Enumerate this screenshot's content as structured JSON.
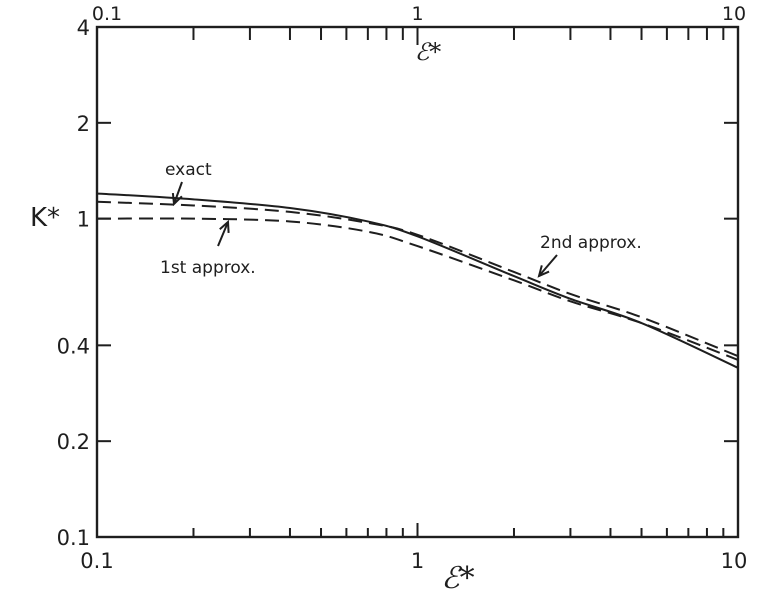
{
  "chart_data": {
    "type": "line",
    "x_scale": "log",
    "y_scale": "log",
    "xlim": [
      0.1,
      10
    ],
    "ylim": [
      0.1,
      4
    ],
    "xlabel": "ℰ*",
    "ylabel": "K*",
    "top_xlabel": "ℰ*",
    "x_ticks": [
      {
        "value": 0.1,
        "label": "0.1"
      },
      {
        "value": 1,
        "label": "1"
      },
      {
        "value": 10,
        "label": "10"
      }
    ],
    "top_x_ticks": [
      {
        "value": 0.1,
        "label": "0.1"
      },
      {
        "value": 1,
        "label": "1"
      },
      {
        "value": 10,
        "label": "10"
      }
    ],
    "y_ticks": [
      {
        "value": 0.1,
        "label": "0.1"
      },
      {
        "value": 0.2,
        "label": "0.2"
      },
      {
        "value": 0.4,
        "label": "0.4"
      },
      {
        "value": 1,
        "label": "1"
      },
      {
        "value": 2,
        "label": "2"
      },
      {
        "value": 4,
        "label": "4"
      }
    ],
    "grid": false,
    "series": [
      {
        "name": "exact",
        "style": "solid",
        "x": [
          0.1,
          0.2,
          0.4,
          0.7,
          1,
          2,
          3,
          5,
          10
        ],
        "y": [
          1.2,
          1.15,
          1.08,
          0.98,
          0.88,
          0.66,
          0.56,
          0.47,
          0.34
        ]
      },
      {
        "name": "1st approx.",
        "style": "dashed",
        "x": [
          0.1,
          0.2,
          0.4,
          0.7,
          1,
          2,
          3,
          5,
          10
        ],
        "y": [
          1.0,
          1.0,
          0.98,
          0.91,
          0.82,
          0.64,
          0.55,
          0.47,
          0.36
        ]
      },
      {
        "name": "2nd approx.",
        "style": "dashed",
        "x": [
          0.1,
          0.2,
          0.4,
          0.7,
          1,
          2,
          3,
          5,
          10
        ],
        "y": [
          1.13,
          1.1,
          1.05,
          0.97,
          0.89,
          0.68,
          0.58,
          0.49,
          0.37
        ]
      }
    ],
    "annotations": [
      {
        "text": "exact",
        "series": "exact"
      },
      {
        "text": "1st approx.",
        "series": "1st approx."
      },
      {
        "text": "2nd approx.",
        "series": "2nd approx."
      }
    ]
  }
}
